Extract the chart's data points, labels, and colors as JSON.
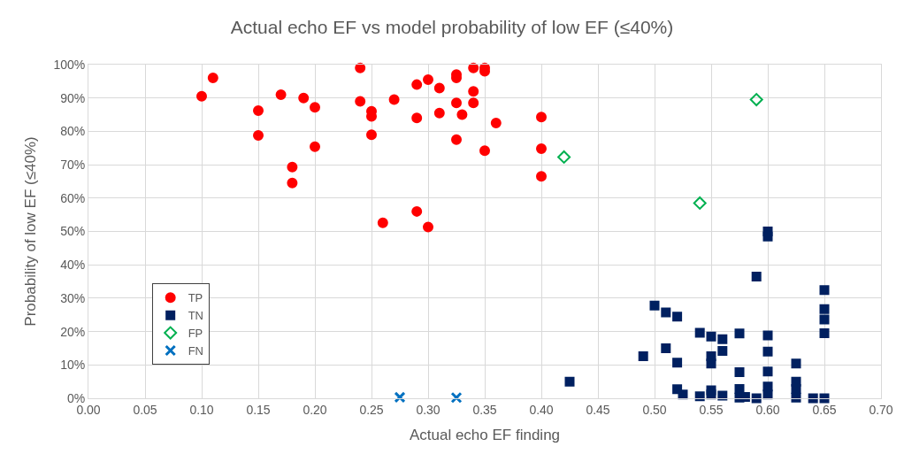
{
  "chart_data": {
    "type": "scatter",
    "title": "Actual echo EF vs model probability of low EF (≤40%)",
    "xlabel": "Actual echo EF finding",
    "ylabel": "Probability of low EF (≤40%)",
    "xlim": [
      0,
      0.7
    ],
    "xticks": [
      {
        "value": 0,
        "label": "0.00"
      },
      {
        "value": 0.05,
        "label": "0.05"
      },
      {
        "value": 0.1,
        "label": "0.10"
      },
      {
        "value": 0.15,
        "label": "0.15"
      },
      {
        "value": 0.2,
        "label": "0.20"
      },
      {
        "value": 0.25,
        "label": "0.25"
      },
      {
        "value": 0.3,
        "label": "0.30"
      },
      {
        "value": 0.35,
        "label": "0.35"
      },
      {
        "value": 0.4,
        "label": "0.40"
      },
      {
        "value": 0.45,
        "label": "0.45"
      },
      {
        "value": 0.5,
        "label": "0.50"
      },
      {
        "value": 0.55,
        "label": "0.55"
      },
      {
        "value": 0.6,
        "label": "0.60"
      },
      {
        "value": 0.65,
        "label": "0.65"
      },
      {
        "value": 0.7,
        "label": "0.70"
      }
    ],
    "ylim": [
      0,
      100
    ],
    "yticks": [
      {
        "value": 0,
        "label": "0%"
      },
      {
        "value": 10,
        "label": "10%"
      },
      {
        "value": 20,
        "label": "20%"
      },
      {
        "value": 30,
        "label": "30%"
      },
      {
        "value": 40,
        "label": "40%"
      },
      {
        "value": 50,
        "label": "50%"
      },
      {
        "value": 60,
        "label": "60%"
      },
      {
        "value": 70,
        "label": "70%"
      },
      {
        "value": 80,
        "label": "80%"
      },
      {
        "value": 90,
        "label": "90%"
      },
      {
        "value": 100,
        "label": "100%"
      }
    ],
    "grid": true,
    "legend": "bottom left",
    "series": [
      {
        "name": "TP",
        "color": "#ff0000",
        "marker": "circle",
        "x": [
          0.1,
          0.11,
          0.15,
          0.15,
          0.17,
          0.18,
          0.18,
          0.19,
          0.2,
          0.2,
          0.24,
          0.24,
          0.25,
          0.25,
          0.25,
          0.26,
          0.27,
          0.29,
          0.29,
          0.29,
          0.3,
          0.3,
          0.31,
          0.31,
          0.325,
          0.325,
          0.325,
          0.325,
          0.33,
          0.34,
          0.34,
          0.34,
          0.35,
          0.35,
          0.35,
          0.36,
          0.4,
          0.4,
          0.4
        ],
        "values": [
          90.5,
          96,
          86.2,
          78.8,
          91,
          69.3,
          64.5,
          90,
          87.2,
          75.4,
          99,
          89,
          86,
          84.5,
          79,
          52.6,
          89.5,
          94,
          84,
          56,
          95.5,
          51.3,
          93,
          85.5,
          97,
          96,
          88.5,
          77.5,
          85,
          99,
          92,
          88.5,
          99,
          98,
          74.2,
          82.5,
          84.3,
          74.8,
          66.5
        ]
      },
      {
        "name": "TN",
        "color": "#002060",
        "marker": "square",
        "x": [
          0.425,
          0.49,
          0.5,
          0.51,
          0.51,
          0.52,
          0.52,
          0.52,
          0.525,
          0.54,
          0.54,
          0.55,
          0.55,
          0.55,
          0.55,
          0.55,
          0.56,
          0.56,
          0.56,
          0.575,
          0.575,
          0.575,
          0.575,
          0.58,
          0.59,
          0.59,
          0.6,
          0.6,
          0.6,
          0.6,
          0.6,
          0.6,
          0.6,
          0.625,
          0.625,
          0.625,
          0.625,
          0.64,
          0.65,
          0.65,
          0.65,
          0.65,
          0.65
        ],
        "values": [
          5.0,
          12.6,
          27.8,
          25.7,
          15.0,
          24.5,
          10.7,
          2.7,
          1.1,
          19.6,
          0.6,
          18.5,
          12.6,
          10.4,
          2.4,
          1.1,
          17.7,
          14.2,
          0.8,
          19.4,
          7.8,
          2.8,
          0.2,
          0.4,
          36.5,
          0,
          50,
          48.5,
          18.8,
          14.0,
          8.0,
          3.5,
          1.1,
          10.4,
          5.0,
          2.8,
          0.2,
          0,
          32.4,
          26.7,
          23.6,
          19.5,
          0
        ]
      },
      {
        "name": "FP",
        "color": "#00b050",
        "marker": "diamond",
        "x": [
          0.42,
          0.54,
          0.59
        ],
        "values": [
          72.3,
          58.5,
          89.5
        ]
      },
      {
        "name": "FN",
        "color": "#0070c0",
        "marker": "cross",
        "x": [
          0.275,
          0.325
        ],
        "values": [
          0.3,
          0.2
        ]
      }
    ]
  }
}
